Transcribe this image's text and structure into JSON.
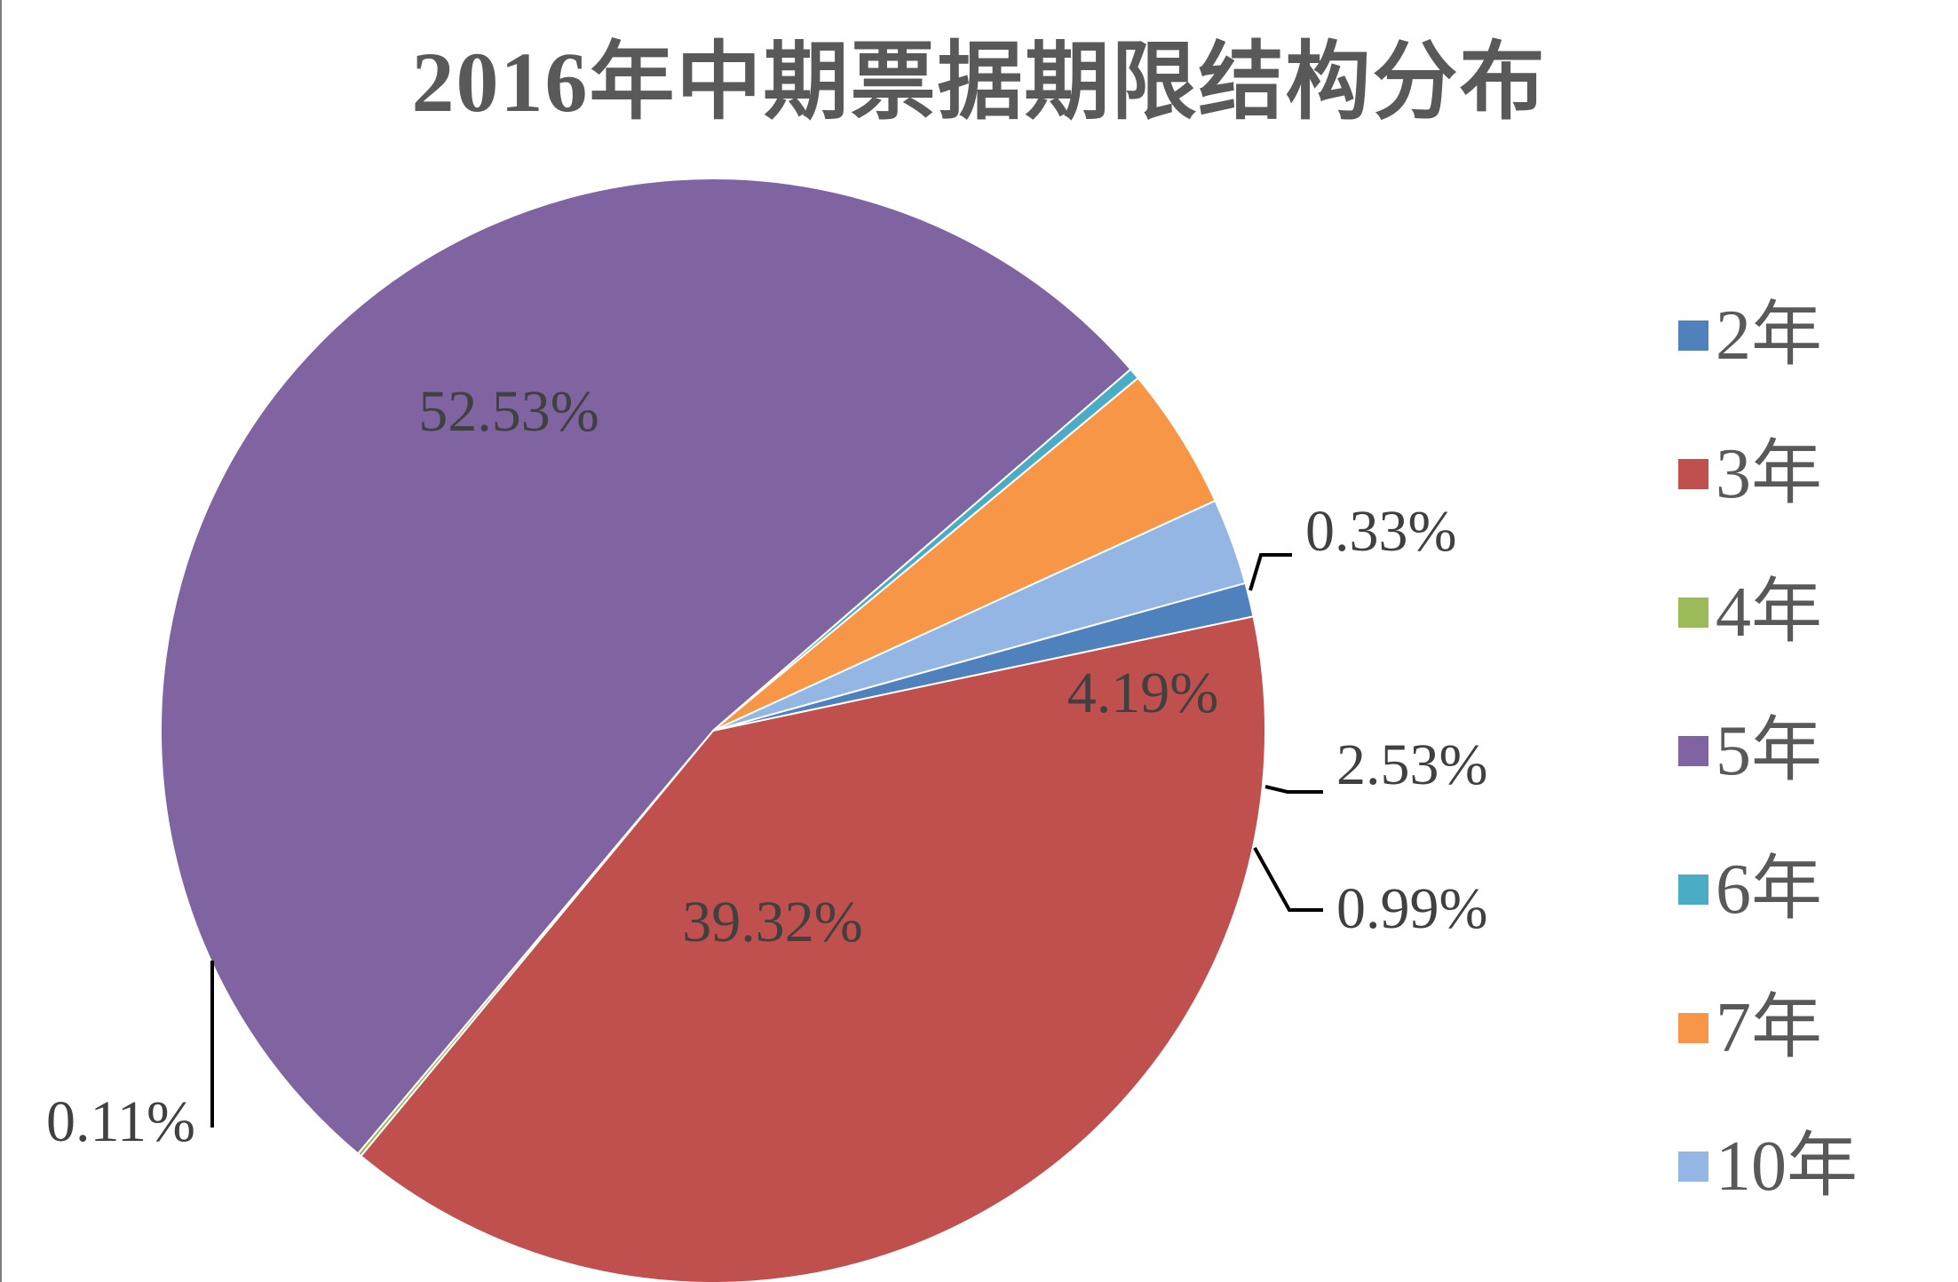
{
  "chart_data": {
    "type": "pie",
    "title": "2016年中期票据期限结构分布",
    "slices": [
      {
        "name": "2年",
        "value": 0.99,
        "label": "0.99%",
        "color": "#4f81bd"
      },
      {
        "name": "3年",
        "value": 39.32,
        "label": "39.32%",
        "color": "#c0504d"
      },
      {
        "name": "4年",
        "value": 0.11,
        "label": "0.11%",
        "color": "#9bbb59"
      },
      {
        "name": "5年",
        "value": 52.53,
        "label": "52.53%",
        "color": "#8064a2"
      },
      {
        "name": "6年",
        "value": 0.33,
        "label": "0.33%",
        "color": "#4bacc6"
      },
      {
        "name": "7年",
        "value": 4.19,
        "label": "4.19%",
        "color": "#f79646"
      },
      {
        "name": "10年",
        "value": 2.53,
        "label": "2.53%",
        "color": "#93b6e4"
      }
    ],
    "legend_position": "right",
    "label_color": "#404040",
    "title_color": "#595959"
  }
}
